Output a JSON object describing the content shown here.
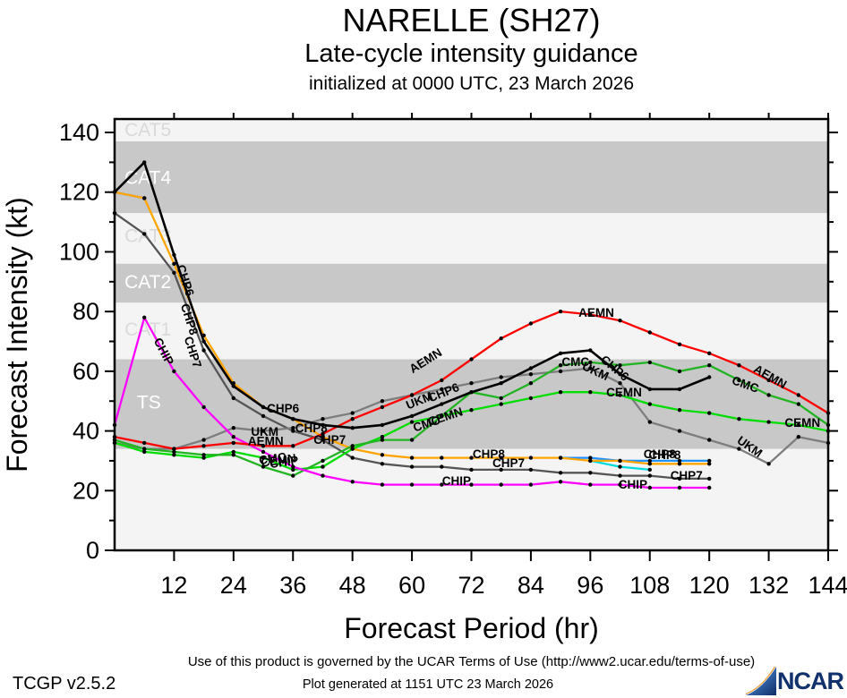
{
  "header": {
    "title": "NARELLE (SH27)",
    "subtitle": "Late-cycle intensity guidance",
    "init_line": "initialized at 0000 UTC, 23 March 2026"
  },
  "footer": {
    "terms": "Use of this product is governed by the UCAR Terms of Use (http://www2.ucar.edu/terms-of-use)",
    "version": "TCGP v2.5.2",
    "generated": "Plot generated at 1151 UTC   23 March 2026",
    "logo_text": "NCAR"
  },
  "chart_data": {
    "type": "line",
    "title": "NARELLE (SH27)",
    "subtitle": "Late-cycle intensity guidance",
    "xlabel": "Forecast Period (hr)",
    "ylabel": "Forecast Intensity (kt)",
    "xlim": [
      0,
      144
    ],
    "ylim": [
      0,
      144.5
    ],
    "xticks": [
      12,
      24,
      36,
      48,
      60,
      72,
      84,
      96,
      108,
      120,
      132,
      144
    ],
    "yticks_major": [
      0,
      20,
      40,
      60,
      80,
      100,
      120,
      140
    ],
    "yticks_minor": [
      10,
      30,
      50,
      70,
      90,
      110,
      130
    ],
    "grid": false,
    "colors": {
      "shaded_band": "#c8c8c8",
      "light_band": "#f4f4f4",
      "band_label_on_gray": "#ffffff",
      "band_label_on_light": "#d9d9d9",
      "AEMN": "#ff0000",
      "CHP6": "#000000",
      "CHP7": "#555555",
      "CHP8": "#ffa500",
      "CHIP": "#ff00ff",
      "UKM": "#7d7d7d",
      "CMC": "#22b422",
      "CEMN": "#00dd00",
      "unlabeled_blue": "#1e90ff",
      "unlabeled_cyan": "#00dcdc"
    },
    "bands": [
      {
        "label": "TS",
        "from": 34,
        "to": 64,
        "shaded": true,
        "label_kt": 47.5,
        "label_hr": 4.5
      },
      {
        "label": "CAT1",
        "from": 64,
        "to": 83,
        "shaded": false,
        "label_kt": 72.0,
        "label_hr": 2.0
      },
      {
        "label": "CAT2",
        "from": 83,
        "to": 96,
        "shaded": true,
        "label_kt": 87.8,
        "label_hr": 2.0
      },
      {
        "label": "CAT3",
        "from": 96,
        "to": 113,
        "shaded": false,
        "label_kt": 103.3,
        "label_hr": 2.0
      },
      {
        "label": "CAT4",
        "from": 113,
        "to": 137,
        "shaded": true,
        "label_kt": 122.8,
        "label_hr": 2.0
      },
      {
        "label": "CAT5",
        "from": 137,
        "to": 144.5,
        "shaded": false,
        "label_kt": 138.8,
        "label_hr": 2.0
      }
    ],
    "series": [
      {
        "name": "unlabeled_cyan",
        "color_key": "unlabeled_cyan",
        "points": [
          [
            96,
            30
          ],
          [
            102,
            28
          ],
          [
            108,
            27
          ]
        ]
      },
      {
        "name": "unlabeled_blue_early",
        "color_key": "unlabeled_blue",
        "points": [
          [
            0,
            120
          ],
          [
            6,
            118
          ]
        ]
      },
      {
        "name": "unlabeled_blue_late",
        "color_key": "unlabeled_blue",
        "points": [
          [
            90,
            31
          ],
          [
            96,
            31
          ],
          [
            102,
            30
          ],
          [
            108,
            30
          ],
          [
            114,
            30
          ],
          [
            120,
            30
          ]
        ]
      },
      {
        "name": "CHP7",
        "color_key": "CHP7",
        "points": [
          [
            0,
            113
          ],
          [
            6,
            106
          ],
          [
            12,
            93
          ],
          [
            18,
            67
          ],
          [
            24,
            51
          ],
          [
            30,
            45
          ],
          [
            36,
            40
          ],
          [
            42,
            37
          ],
          [
            48,
            31
          ],
          [
            54,
            29
          ],
          [
            60,
            28
          ],
          [
            66,
            28
          ],
          [
            72,
            27
          ],
          [
            78,
            27
          ],
          [
            84,
            27
          ],
          [
            90,
            26
          ],
          [
            96,
            26
          ],
          [
            102,
            25
          ],
          [
            108,
            25
          ],
          [
            114,
            24
          ],
          [
            120,
            24
          ]
        ]
      },
      {
        "name": "UKM",
        "color_key": "UKM",
        "points": [
          [
            0,
            36
          ],
          [
            6,
            34
          ],
          [
            12,
            34
          ],
          [
            18,
            37
          ],
          [
            24,
            41
          ],
          [
            30,
            40
          ],
          [
            36,
            41
          ],
          [
            42,
            44
          ],
          [
            48,
            46
          ],
          [
            54,
            50
          ],
          [
            60,
            52
          ],
          [
            66,
            54
          ],
          [
            72,
            56
          ],
          [
            78,
            58
          ],
          [
            84,
            59
          ],
          [
            90,
            60
          ],
          [
            96,
            61
          ],
          [
            102,
            56
          ],
          [
            108,
            43
          ],
          [
            114,
            40
          ],
          [
            120,
            37
          ],
          [
            126,
            34
          ],
          [
            132,
            29
          ],
          [
            138,
            38
          ],
          [
            144,
            36
          ]
        ]
      },
      {
        "name": "CHP8",
        "color_key": "CHP8",
        "points": [
          [
            0,
            120
          ],
          [
            6,
            118
          ],
          [
            12,
            96
          ],
          [
            18,
            72
          ],
          [
            24,
            56
          ],
          [
            30,
            48
          ],
          [
            36,
            44
          ],
          [
            42,
            38
          ],
          [
            48,
            34
          ],
          [
            54,
            32
          ],
          [
            60,
            31
          ],
          [
            66,
            31
          ],
          [
            72,
            31
          ],
          [
            78,
            31
          ],
          [
            84,
            31
          ],
          [
            90,
            31
          ],
          [
            96,
            30
          ],
          [
            102,
            30
          ],
          [
            108,
            29
          ],
          [
            114,
            29
          ],
          [
            120,
            29
          ]
        ]
      },
      {
        "name": "CEMN",
        "color_key": "CEMN",
        "points": [
          [
            0,
            36
          ],
          [
            6,
            33
          ],
          [
            12,
            32
          ],
          [
            18,
            31
          ],
          [
            24,
            33
          ],
          [
            30,
            31
          ],
          [
            36,
            27
          ],
          [
            42,
            28
          ],
          [
            48,
            34
          ],
          [
            54,
            38
          ],
          [
            60,
            43
          ],
          [
            66,
            45
          ],
          [
            72,
            47
          ],
          [
            78,
            49
          ],
          [
            84,
            51
          ],
          [
            90,
            53
          ],
          [
            96,
            53
          ],
          [
            102,
            52
          ],
          [
            108,
            49
          ],
          [
            114,
            47
          ],
          [
            120,
            46
          ],
          [
            126,
            44
          ],
          [
            132,
            43
          ],
          [
            138,
            42
          ],
          [
            144,
            40
          ]
        ]
      },
      {
        "name": "CMC",
        "color_key": "CMC",
        "points": [
          [
            0,
            37
          ],
          [
            6,
            34
          ],
          [
            12,
            33
          ],
          [
            18,
            32
          ],
          [
            24,
            32
          ],
          [
            30,
            28
          ],
          [
            36,
            25
          ],
          [
            42,
            30
          ],
          [
            48,
            35
          ],
          [
            54,
            37
          ],
          [
            60,
            37
          ],
          [
            66,
            45
          ],
          [
            72,
            53
          ],
          [
            78,
            51
          ],
          [
            84,
            56
          ],
          [
            90,
            62
          ],
          [
            96,
            63
          ],
          [
            102,
            62
          ],
          [
            108,
            63
          ],
          [
            114,
            60
          ],
          [
            120,
            62
          ],
          [
            126,
            57
          ],
          [
            132,
            52
          ],
          [
            138,
            49
          ],
          [
            144,
            42
          ]
        ]
      },
      {
        "name": "CHIP",
        "color_key": "CHIP",
        "points": [
          [
            0,
            42
          ],
          [
            6,
            78
          ],
          [
            12,
            60
          ],
          [
            18,
            48
          ],
          [
            24,
            38
          ],
          [
            30,
            33
          ],
          [
            36,
            28
          ],
          [
            42,
            25
          ],
          [
            48,
            23
          ],
          [
            54,
            22
          ],
          [
            60,
            22
          ],
          [
            66,
            22
          ],
          [
            72,
            22
          ],
          [
            78,
            22
          ],
          [
            84,
            22
          ],
          [
            90,
            23
          ],
          [
            96,
            22
          ],
          [
            102,
            22
          ],
          [
            108,
            21
          ],
          [
            114,
            21
          ],
          [
            120,
            21
          ]
        ]
      },
      {
        "name": "AEMN",
        "color_key": "AEMN",
        "points": [
          [
            0,
            38
          ],
          [
            6,
            36
          ],
          [
            12,
            34
          ],
          [
            18,
            35
          ],
          [
            24,
            36
          ],
          [
            30,
            35
          ],
          [
            36,
            35
          ],
          [
            42,
            39
          ],
          [
            48,
            44
          ],
          [
            54,
            48
          ],
          [
            60,
            52
          ],
          [
            66,
            57
          ],
          [
            72,
            64
          ],
          [
            78,
            71
          ],
          [
            84,
            76
          ],
          [
            90,
            80
          ],
          [
            96,
            79
          ],
          [
            102,
            77
          ],
          [
            108,
            73
          ],
          [
            114,
            69
          ],
          [
            120,
            66
          ],
          [
            126,
            62
          ],
          [
            132,
            57
          ],
          [
            138,
            52
          ],
          [
            144,
            46
          ]
        ]
      },
      {
        "name": "CHP6",
        "color_key": "CHP6",
        "points": [
          [
            0,
            120
          ],
          [
            6,
            130
          ],
          [
            12,
            99
          ],
          [
            18,
            70
          ],
          [
            24,
            55
          ],
          [
            30,
            48
          ],
          [
            36,
            44
          ],
          [
            42,
            42
          ],
          [
            48,
            41
          ],
          [
            54,
            42
          ],
          [
            60,
            45
          ],
          [
            66,
            49
          ],
          [
            72,
            53
          ],
          [
            78,
            56
          ],
          [
            84,
            61
          ],
          [
            90,
            66
          ],
          [
            96,
            67
          ],
          [
            102,
            59
          ],
          [
            108,
            54
          ],
          [
            114,
            54
          ],
          [
            120,
            58
          ]
        ]
      }
    ],
    "line_labels": [
      {
        "text": "CHP6",
        "hr": 13.5,
        "kt": 90,
        "angle": 72
      },
      {
        "text": "CHP8",
        "hr": 14.3,
        "kt": 77,
        "angle": 72
      },
      {
        "text": "CHP7",
        "hr": 15.0,
        "kt": 66,
        "angle": 72
      },
      {
        "text": "CHIP",
        "hr": 9.2,
        "kt": 66,
        "angle": 62
      },
      {
        "text": "UKM",
        "hr": 30.3,
        "kt": 38.4,
        "angle": 0
      },
      {
        "text": "AEMN",
        "hr": 30.5,
        "kt": 35.2,
        "angle": 0
      },
      {
        "text": "CHP6",
        "hr": 34.0,
        "kt": 46.2,
        "angle": 0
      },
      {
        "text": "CHP8",
        "hr": 39.7,
        "kt": 39.6,
        "angle": 0
      },
      {
        "text": "CHP7",
        "hr": 43.4,
        "kt": 35.7,
        "angle": 0
      },
      {
        "text": "CMC",
        "hr": 32.0,
        "kt": 29.4,
        "angle": -8
      },
      {
        "text": "CEMN",
        "hr": 33.2,
        "kt": 28.8,
        "angle": -8
      },
      {
        "text": "CHIP",
        "hr": 34.3,
        "kt": 28.2,
        "angle": -8
      },
      {
        "text": "AEMN",
        "hr": 63.2,
        "kt": 62.4,
        "angle": -32
      },
      {
        "text": "UKM",
        "hr": 61.8,
        "kt": 48.9,
        "angle": -22
      },
      {
        "text": "CHP6",
        "hr": 66.7,
        "kt": 51.6,
        "angle": -22
      },
      {
        "text": "CMC",
        "hr": 63.2,
        "kt": 41.1,
        "angle": -18
      },
      {
        "text": "CEMN",
        "hr": 67.0,
        "kt": 43.5,
        "angle": -18
      },
      {
        "text": "CHP8",
        "hr": 75.5,
        "kt": 30.9,
        "angle": 0
      },
      {
        "text": "CHP7",
        "hr": 79.5,
        "kt": 27.9,
        "angle": 0
      },
      {
        "text": "CHIP",
        "hr": 69.0,
        "kt": 21.9,
        "angle": 0
      },
      {
        "text": "AEMN",
        "hr": 97.2,
        "kt": 78.3,
        "angle": 0
      },
      {
        "text": "CMC",
        "hr": 93.0,
        "kt": 61.8,
        "angle": 0
      },
      {
        "text": "UKM",
        "hr": 96.7,
        "kt": 58.8,
        "angle": 25
      },
      {
        "text": "CHP6",
        "hr": 100.4,
        "kt": 60.0,
        "angle": 40
      },
      {
        "text": "CEMN",
        "hr": 102.8,
        "kt": 51.6,
        "angle": 0
      },
      {
        "text": "AEMN",
        "hr": 131.9,
        "kt": 57.0,
        "angle": 30
      },
      {
        "text": "CMC",
        "hr": 127.0,
        "kt": 54.3,
        "angle": 20
      },
      {
        "text": "CEMN",
        "hr": 138.8,
        "kt": 41.4,
        "angle": 0
      },
      {
        "text": "UKM",
        "hr": 127.7,
        "kt": 33.6,
        "angle": 35
      },
      {
        "text": "CHP8",
        "hr": 110.0,
        "kt": 30.9,
        "angle": 0
      },
      {
        "text": "CHP8",
        "hr": 111.0,
        "kt": 30.6,
        "angle": 0
      },
      {
        "text": "CHP7",
        "hr": 115.4,
        "kt": 23.7,
        "angle": 0
      },
      {
        "text": "CHIP",
        "hr": 104.6,
        "kt": 20.7,
        "angle": 0
      }
    ],
    "legend_position": "none"
  }
}
